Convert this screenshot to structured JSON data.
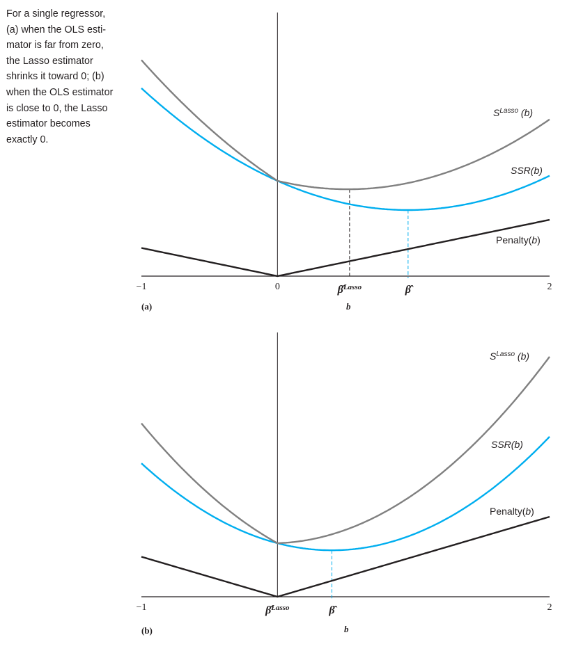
{
  "caption_lines": [
    "For a single regressor,",
    "(a) when the OLS esti-",
    "mator is far from zero,",
    "the Lasso estimator",
    "shrinks it toward 0; (b)",
    "when the OLS estimator",
    "is close to 0, the Lasso",
    "estimator becomes",
    "exactly 0."
  ],
  "colors": {
    "s_lasso": "#808080",
    "ssr": "#00aeef",
    "penalty": "#231f20",
    "axis": "#231f20"
  },
  "chart_data": [
    {
      "type": "line",
      "panel_label": "(a)",
      "xlabel": "b",
      "xlim": [
        -1,
        2
      ],
      "ylim": [
        0,
        3.9
      ],
      "x_ticks": [
        {
          "value": -1,
          "label": "−1"
        },
        {
          "value": 0,
          "label": "0"
        },
        {
          "value": 2,
          "label": "2"
        }
      ],
      "markers": [
        {
          "name": "beta-lasso",
          "value": 0.53,
          "label": "β̂",
          "sup": "Lasso",
          "curve": "s_lasso"
        },
        {
          "name": "beta-hat",
          "value": 0.96,
          "label": "β̂",
          "sup": "",
          "curve": "ssr"
        }
      ],
      "ssr": {
        "center": 0.96,
        "minimum": 0.95,
        "curvature": 0.456
      },
      "penalty_lambda": 0.405,
      "series_labels": {
        "s_lasso": "S",
        "s_lasso_sup": "Lasso",
        "s_lasso_arg": " (b)",
        "ssr": "SSR(",
        "ssr_arg": "b",
        "ssr_close": ")",
        "penalty": "Penalty(",
        "penalty_arg": "b",
        "penalty_close": ")"
      }
    },
    {
      "type": "line",
      "panel_label": "(b)",
      "xlabel": "b",
      "xlim": [
        -1,
        2
      ],
      "ylim": [
        0,
        3.9
      ],
      "x_ticks": [
        {
          "value": -1,
          "label": "−1"
        },
        {
          "value": 2,
          "label": "2"
        }
      ],
      "markers": [
        {
          "name": "beta-lasso",
          "value": 0,
          "label": "β̂",
          "sup": "Lasso",
          "curve": "none"
        },
        {
          "name": "beta-hat",
          "value": 0.4,
          "label": "β̂",
          "sup": "",
          "curve": "ssr"
        }
      ],
      "ssr": {
        "center": 0.4,
        "minimum": 0.668,
        "curvature": 0.638
      },
      "penalty_lambda": 0.575,
      "series_labels": {
        "s_lasso": "S",
        "s_lasso_sup": "Lasso",
        "s_lasso_arg": " (b)",
        "ssr": "SSR(",
        "ssr_arg": "b",
        "ssr_close": ")",
        "penalty": "Penalty(",
        "penalty_arg": "b",
        "penalty_close": ")"
      }
    }
  ]
}
